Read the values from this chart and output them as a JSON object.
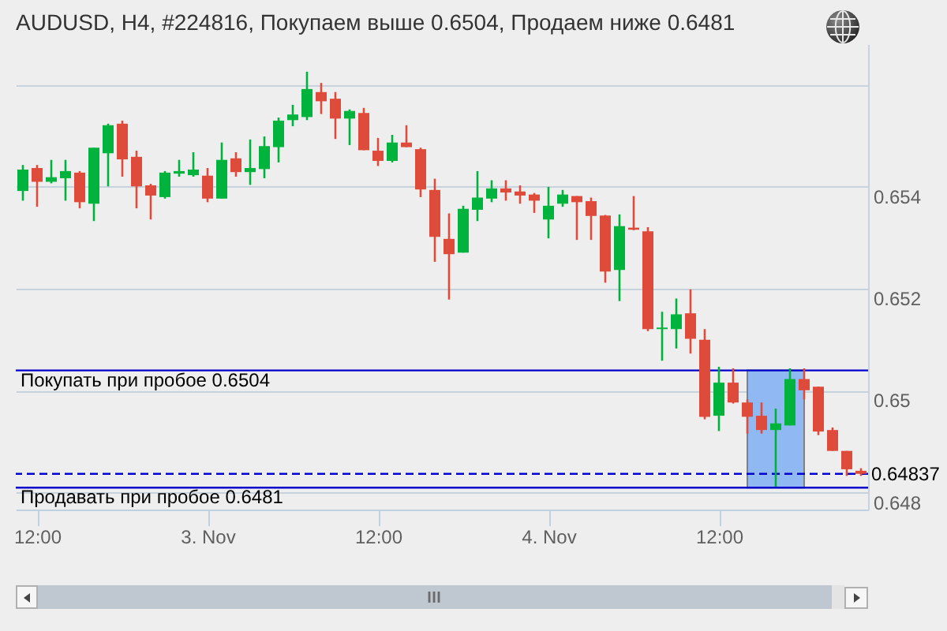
{
  "chart_data": {
    "type": "candlestick",
    "title": "AUDUSD, H4, #224816, Покупаем выше 0.6504, Продаем ниже 0.6481",
    "x": [
      "--11-02T11:00",
      "--11-02T12:00",
      "--11-02T13:00",
      "--11-02T14:00",
      "--11-02T15:00",
      "--11-02T16:00",
      "--11-02T17:00",
      "--11-02T18:00",
      "--11-02T19:00",
      "--11-02T20:00",
      "--11-02T21:00",
      "--11-02T22:00",
      "--11-02T23:00",
      "--11-03T00:00",
      "--11-03T01:00",
      "--11-03T02:00",
      "--11-03T03:00",
      "--11-03T04:00",
      "--11-03T05:00",
      "--11-03T06:00",
      "--11-03T07:00",
      "--11-03T08:00",
      "--11-03T09:00",
      "--11-03T10:00",
      "--11-03T11:00",
      "--11-03T12:00",
      "--11-03T13:00",
      "--11-03T14:00",
      "--11-03T15:00",
      "--11-03T16:00",
      "--11-03T17:00",
      "--11-03T18:00",
      "--11-03T19:00",
      "--11-03T20:00",
      "--11-03T21:00",
      "--11-03T22:00",
      "--11-03T23:00",
      "--11-04T00:00",
      "--11-04T01:00",
      "--11-04T02:00",
      "--11-04T03:00",
      "--11-04T04:00",
      "--11-04T05:00",
      "--11-04T06:00",
      "--11-04T07:00",
      "--11-04T08:00",
      "--11-04T09:00",
      "--11-04T10:00",
      "--11-04T11:00",
      "--11-04T12:00",
      "--11-04T13:00",
      "--11-04T14:00",
      "--11-04T15:00",
      "--11-04T16:00",
      "--11-04T17:00",
      "--11-04T18:00",
      "--11-04T19:00",
      "--11-04T20:00",
      "--11-04T21:00",
      "--11-04T22:00"
    ],
    "ohlc": [
      [
        0.65392,
        0.65443,
        0.65373,
        0.65434
      ],
      [
        0.65437,
        0.65443,
        0.65361,
        0.6541
      ],
      [
        0.6541,
        0.65453,
        0.65407,
        0.65419
      ],
      [
        0.65417,
        0.65453,
        0.65373,
        0.65431
      ],
      [
        0.65428,
        0.65431,
        0.65358,
        0.6537
      ],
      [
        0.65367,
        0.65477,
        0.65333,
        0.65477
      ],
      [
        0.65466,
        0.65524,
        0.65401,
        0.65521
      ],
      [
        0.65524,
        0.6553,
        0.6542,
        0.65454
      ],
      [
        0.65459,
        0.65471,
        0.65358,
        0.65401
      ],
      [
        0.65403,
        0.65406,
        0.65336,
        0.65383
      ],
      [
        0.6538,
        0.65431,
        0.65377,
        0.65428
      ],
      [
        0.65426,
        0.65453,
        0.6542,
        0.65431
      ],
      [
        0.65423,
        0.65468,
        0.6542,
        0.65434
      ],
      [
        0.65422,
        0.65437,
        0.6537,
        0.65377
      ],
      [
        0.65377,
        0.65487,
        0.65377,
        0.65453
      ],
      [
        0.65456,
        0.65468,
        0.6542,
        0.65429
      ],
      [
        0.65429,
        0.65493,
        0.65404,
        0.65437
      ],
      [
        0.65435,
        0.65499,
        0.65417,
        0.6548
      ],
      [
        0.65478,
        0.65536,
        0.65448,
        0.6553
      ],
      [
        0.65531,
        0.65561,
        0.65519,
        0.65542
      ],
      [
        0.65537,
        0.65626,
        0.65531,
        0.65592
      ],
      [
        0.65586,
        0.65604,
        0.65543,
        0.65568
      ],
      [
        0.65573,
        0.65586,
        0.65494,
        0.65534
      ],
      [
        0.65534,
        0.65552,
        0.65482,
        0.65549
      ],
      [
        0.65545,
        0.65555,
        0.65472,
        0.65472
      ],
      [
        0.65471,
        0.65496,
        0.65441,
        0.65451
      ],
      [
        0.65451,
        0.65502,
        0.65448,
        0.65487
      ],
      [
        0.65487,
        0.65521,
        0.65478,
        0.65478
      ],
      [
        0.65474,
        0.65477,
        0.6538,
        0.65395
      ],
      [
        0.65394,
        0.65416,
        0.65253,
        0.65302
      ],
      [
        0.65298,
        0.65348,
        0.65179,
        0.65268
      ],
      [
        0.65271,
        0.65363,
        0.65271,
        0.65357
      ],
      [
        0.65355,
        0.65431,
        0.65333,
        0.65379
      ],
      [
        0.65377,
        0.65413,
        0.6537,
        0.65397
      ],
      [
        0.65397,
        0.65413,
        0.65373,
        0.65389
      ],
      [
        0.65391,
        0.65403,
        0.65367,
        0.65383
      ],
      [
        0.65385,
        0.65388,
        0.65349,
        0.65373
      ],
      [
        0.65336,
        0.654,
        0.65299,
        0.65363
      ],
      [
        0.65367,
        0.65394,
        0.65361,
        0.65385
      ],
      [
        0.65382,
        0.65382,
        0.65296,
        0.6537
      ],
      [
        0.65372,
        0.65379,
        0.65296,
        0.65343
      ],
      [
        0.65344,
        0.65345,
        0.65212,
        0.65234
      ],
      [
        0.65237,
        0.65346,
        0.65176,
        0.65323
      ],
      [
        0.6532,
        0.65382,
        0.65315,
        0.65316
      ],
      [
        0.65313,
        0.65321,
        0.65117,
        0.65121
      ],
      [
        0.65121,
        0.65155,
        0.65059,
        0.65124
      ],
      [
        0.65121,
        0.65181,
        0.65083,
        0.6515
      ],
      [
        0.65152,
        0.65199,
        0.65073,
        0.65102
      ],
      [
        0.651,
        0.65121,
        0.64944,
        0.64949
      ],
      [
        0.64951,
        0.65047,
        0.64921,
        0.65016
      ],
      [
        0.65016,
        0.65044,
        0.64975,
        0.64977
      ],
      [
        0.64977,
        0.64983,
        0.64916,
        0.64949
      ],
      [
        0.64951,
        0.64977,
        0.64916,
        0.64923
      ],
      [
        0.64923,
        0.64965,
        0.64812,
        0.64936
      ],
      [
        0.64932,
        0.65044,
        0.64932,
        0.65023
      ],
      [
        0.65023,
        0.65044,
        0.64983,
        0.65001
      ],
      [
        0.65008,
        0.65008,
        0.64913,
        0.6492
      ],
      [
        0.64923,
        0.64928,
        0.64882,
        0.64882
      ],
      [
        0.64882,
        0.64882,
        0.64833,
        0.64846
      ],
      [
        0.64843,
        0.64848,
        0.64833,
        0.64837
      ]
    ],
    "colors": [
      "#00b33c",
      "#de4b3b",
      "#00b33c",
      "#00b33c",
      "#de4b3b",
      "#00b33c",
      "#00b33c",
      "#de4b3b",
      "#de4b3b",
      "#de4b3b",
      "#00b33c",
      "#00b33c",
      "#00b33c",
      "#de4b3b",
      "#00b33c",
      "#de4b3b",
      "#00b33c",
      "#00b33c",
      "#00b33c",
      "#00b33c",
      "#00b33c",
      "#de4b3b",
      "#de4b3b",
      "#00b33c",
      "#de4b3b",
      "#de4b3b",
      "#00b33c",
      "#de4b3b",
      "#de4b3b",
      "#de4b3b",
      "#de4b3b",
      "#00b33c",
      "#00b33c",
      "#00b33c",
      "#de4b3b",
      "#de4b3b",
      "#de4b3b",
      "#00b33c",
      "#00b33c",
      "#de4b3b",
      "#de4b3b",
      "#de4b3b",
      "#00b33c",
      "#de4b3b",
      "#de4b3b",
      "#00b33c",
      "#00b33c",
      "#de4b3b",
      "#de4b3b",
      "#00b33c",
      "#de4b3b",
      "#de4b3b",
      "#de4b3b",
      "#00b33c",
      "#00b33c",
      "#de4b3b",
      "#de4b3b",
      "#de4b3b",
      "#de4b3b",
      "#de4b3b"
    ],
    "xlim": [
      "--11-02T10:30",
      "--11-04T22:30"
    ],
    "xticks": [
      {
        "value": "--11-02T12:00",
        "label": "12:00"
      },
      {
        "value": "--11-03",
        "label": "3. Nov"
      },
      {
        "value": "--11-03T12:00",
        "label": "12:00"
      },
      {
        "value": "--11-04",
        "label": "4. Nov"
      },
      {
        "value": "--11-04T12:00",
        "label": "12:00"
      }
    ],
    "ylim": [
      0.64767,
      0.6568
    ],
    "yticks": [
      {
        "value": 0.656,
        "label": null
      },
      0.654,
      0.652,
      0.65,
      0.648
    ],
    "grid": "y",
    "ref_lines": [
      {
        "axis": "y",
        "value": 0.6504,
        "label": "Покупать при пробое 0.6504",
        "color": "#0000cc",
        "line_style": "solid"
      },
      {
        "axis": "y",
        "value": 0.64837,
        "label": "0.64837",
        "color": "#0000cc",
        "line_style": "dashed"
      },
      {
        "axis": "y",
        "value": 0.6481,
        "label": "Продавать при пробое 0.6481",
        "color": "#0000cc",
        "line_style": "solid"
      }
    ],
    "bands": [
      {
        "axis": "x",
        "from": "--11-04T14:00",
        "to": "--11-04T18:00",
        "color": "#90b8f2"
      }
    ]
  }
}
